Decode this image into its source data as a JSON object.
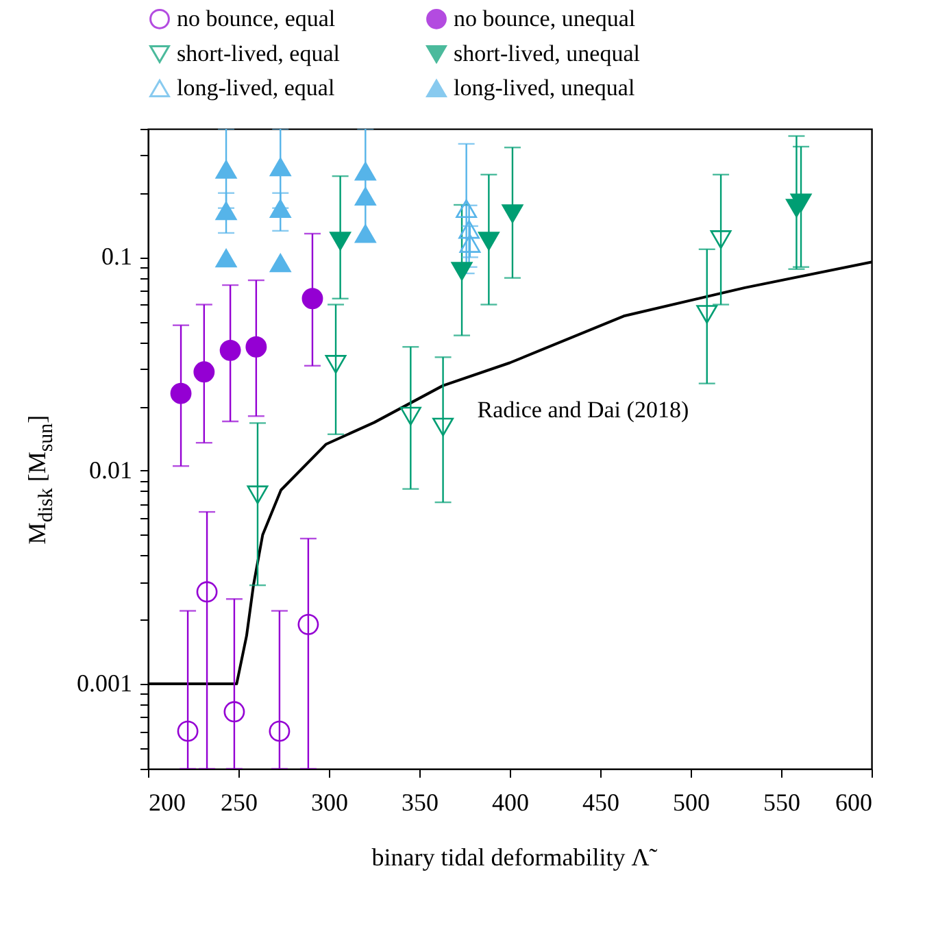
{
  "chart_data": {
    "type": "scatter",
    "xlabel": "binary tidal deformability Λ̃",
    "ylabel": "M$_{disk}$ [M$_{sun}$]",
    "log": "y",
    "grid": false,
    "legend": "top",
    "xlim": [
      200,
      600
    ],
    "xticks": [
      200,
      250,
      300,
      350,
      400,
      450,
      500,
      550,
      600
    ],
    "ylim": [
      0.0004,
      0.4
    ],
    "yticks": [
      {
        "value": 0.0004,
        "label": null
      },
      {
        "value": 0.0005,
        "label": null
      },
      {
        "value": 0.0006,
        "label": null
      },
      {
        "value": 0.0007,
        "label": null
      },
      {
        "value": 0.0008,
        "label": null
      },
      {
        "value": 0.0009,
        "label": null
      },
      0.001,
      {
        "value": 0.002,
        "label": null
      },
      {
        "value": 0.003,
        "label": null
      },
      {
        "value": 0.004,
        "label": null
      },
      {
        "value": 0.005,
        "label": null
      },
      {
        "value": 0.006,
        "label": null
      },
      {
        "value": 0.007,
        "label": null
      },
      {
        "value": 0.008,
        "label": null
      },
      {
        "value": 0.009,
        "label": null
      },
      0.01,
      {
        "value": 0.02,
        "label": null
      },
      {
        "value": 0.03,
        "label": null
      },
      {
        "value": 0.04,
        "label": null
      },
      {
        "value": 0.05,
        "label": null
      },
      {
        "value": 0.06,
        "label": null
      },
      {
        "value": 0.07,
        "label": null
      },
      {
        "value": 0.08,
        "label": null
      },
      {
        "value": 0.09,
        "label": null
      },
      0.1,
      {
        "value": 0.2,
        "label": null
      },
      {
        "value": 0.3,
        "label": null
      },
      {
        "value": 0.4,
        "label": null
      }
    ],
    "annotations": [
      "Radice and Dai (2018)"
    ],
    "series": [
      {
        "name": "no bounce, equal",
        "color": "#9400d3",
        "marker": "circle-open",
        "x": [
          222,
          232.6,
          247.7,
          272.7,
          288.6
        ],
        "values": [
          0.0006,
          0.0027,
          0.00074,
          0.0006,
          0.0019
        ],
        "errors": [
          [
            0.0004,
            0.0022
          ],
          [
            0.0004,
            0.0064
          ],
          [
            0.0004,
            0.0025
          ],
          [
            0.0004,
            0.0022
          ],
          [
            0.0004,
            0.0048
          ]
        ]
      },
      {
        "name": "no bounce, unequal",
        "color": "#9400d3",
        "marker": "circle",
        "x": [
          218.2,
          231,
          245.5,
          259.8,
          290.9
        ],
        "values": [
          0.023,
          0.029,
          0.0366,
          0.038,
          0.064
        ],
        "errors": [
          [
            0.0105,
            0.048
          ],
          [
            0.0135,
            0.06
          ],
          [
            0.017,
            0.074
          ],
          [
            0.018,
            0.078
          ],
          [
            0.031,
            0.129
          ]
        ]
      },
      {
        "name": "short-lived, equal",
        "color": "#009e73",
        "marker": "triangle-down-open",
        "x": [
          260.6,
          303.8,
          345.2,
          363.1,
          509,
          516.7
        ],
        "values": [
          0.0077,
          0.0315,
          0.018,
          0.016,
          0.054,
          0.121
        ],
        "errors": [
          [
            0.0029,
            0.0167
          ],
          [
            0.0148,
            0.06
          ],
          [
            0.0082,
            0.038
          ],
          [
            0.0071,
            0.034
          ],
          [
            0.0256,
            0.109
          ],
          [
            0.06,
            0.244
          ]
        ]
      },
      {
        "name": "short-lived, unequal",
        "color": "#009e73",
        "marker": "triangle-down",
        "x": [
          306.3,
          373.5,
          388.4,
          401.5,
          558.5,
          561
        ],
        "values": [
          0.119,
          0.086,
          0.119,
          0.16,
          0.17,
          0.18
        ],
        "errors": [
          [
            0.064,
            0.24
          ],
          [
            0.043,
            0.176
          ],
          [
            0.06,
            0.244
          ],
          [
            0.08,
            0.327
          ],
          [
            0.088,
            0.37
          ],
          [
            0.09,
            0.33
          ]
        ]
      },
      {
        "name": "long-lived, equal",
        "color": "#56b4e9",
        "marker": "triangle-open",
        "x": [
          376,
          377.5,
          378
        ],
        "values": [
          0.169,
          0.135,
          0.116
        ],
        "errors": [
          [
            0.084,
            0.34
          ],
          [
            0.09,
            0.175
          ],
          [
            0.1,
            0.14
          ]
        ]
      },
      {
        "name": "long-lived, unequal",
        "color": "#56b4e9",
        "marker": "triangle",
        "x": [
          243.2,
          243.2,
          243.2,
          273.2,
          273.2,
          273.2,
          320.2,
          320.2,
          320.2
        ],
        "values": [
          0.258,
          0.165,
          0.099,
          0.265,
          0.169,
          0.094,
          0.253,
          0.193,
          0.129
        ],
        "errors": [
          [
            0.17,
            0.4
          ],
          [
            0.13,
            0.2
          ],
          null,
          [
            0.17,
            0.4
          ],
          [
            0.133,
            0.2
          ],
          null,
          [
            0.12,
            0.4
          ],
          null,
          null
        ]
      },
      {
        "type": "line",
        "color": "#000000",
        "marker": "none",
        "line_style": "solid",
        "x": [
          200,
          249,
          254.5,
          258.3,
          263.4,
          273.5,
          298.5,
          325,
          363,
          400,
          463,
          530,
          600
        ],
        "values": [
          0.001,
          0.001,
          0.00168,
          0.0029,
          0.005,
          0.0081,
          0.0133,
          0.0168,
          0.025,
          0.032,
          0.053,
          0.072,
          0.095
        ]
      }
    ]
  }
}
